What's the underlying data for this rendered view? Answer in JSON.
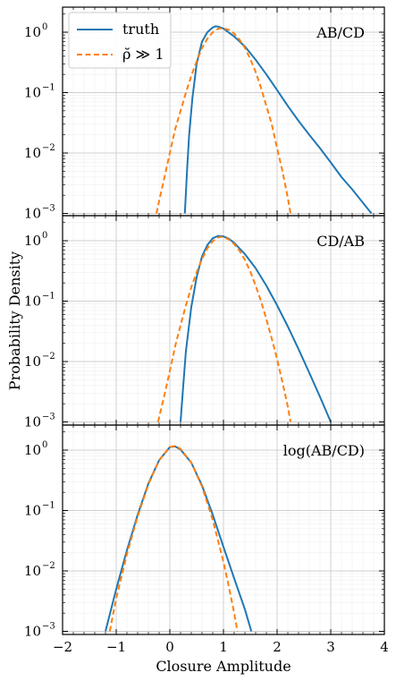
{
  "chart_data": {
    "type": "line",
    "xlabel": "Closure Amplitude",
    "ylabel": "Probability Density",
    "xlim": [
      -2,
      4
    ],
    "ylim": [
      0.001,
      3
    ],
    "y_scale": "log",
    "grid": true,
    "shared_x": true,
    "x_ticks": [
      "−2",
      "−1",
      "0",
      "1",
      "2",
      "3",
      "4"
    ],
    "y_ticks": [
      {
        "base": "10",
        "exp": "0"
      },
      {
        "base": "10",
        "exp": "−1"
      },
      {
        "base": "10",
        "exp": "−2"
      },
      {
        "base": "10",
        "exp": "−3"
      }
    ],
    "legend": {
      "placement": "top-left",
      "entries": [
        {
          "label": "truth",
          "color": "#1f77b4",
          "style": "solid"
        },
        {
          "label": "ρ̆ ≫ 1",
          "color": "#ff7f0e",
          "style": "dashed"
        }
      ]
    },
    "panels": [
      {
        "label": "AB/CD",
        "series": [
          {
            "name": "truth",
            "color": "#1f77b4",
            "style": "solid",
            "points": [
              [
                0.28,
                0.001
              ],
              [
                0.32,
                0.005
              ],
              [
                0.36,
                0.02
              ],
              [
                0.42,
                0.08
              ],
              [
                0.5,
                0.3
              ],
              [
                0.6,
                0.7
              ],
              [
                0.7,
                1.0
              ],
              [
                0.8,
                1.2
              ],
              [
                0.85,
                1.25
              ],
              [
                0.9,
                1.24
              ],
              [
                1.0,
                1.15
              ],
              [
                1.2,
                0.85
              ],
              [
                1.4,
                0.58
              ],
              [
                1.6,
                0.35
              ],
              [
                1.8,
                0.2
              ],
              [
                2.0,
                0.11
              ],
              [
                2.2,
                0.06
              ],
              [
                2.4,
                0.034
              ],
              [
                2.6,
                0.02
              ],
              [
                2.8,
                0.012
              ],
              [
                3.0,
                0.007
              ],
              [
                3.2,
                0.004
              ],
              [
                3.4,
                0.0025
              ],
              [
                3.6,
                0.0015
              ],
              [
                3.76,
                0.001
              ]
            ]
          },
          {
            "name": "ρ̆ ≫ 1",
            "color": "#ff7f0e",
            "style": "dashed",
            "points": [
              [
                -0.25,
                0.001
              ],
              [
                -0.2,
                0.0016
              ],
              [
                -0.1,
                0.004
              ],
              [
                0.0,
                0.01
              ],
              [
                0.1,
                0.025
              ],
              [
                0.2,
                0.05
              ],
              [
                0.3,
                0.1
              ],
              [
                0.4,
                0.19
              ],
              [
                0.5,
                0.33
              ],
              [
                0.6,
                0.55
              ],
              [
                0.7,
                0.78
              ],
              [
                0.8,
                1.0
              ],
              [
                0.9,
                1.14
              ],
              [
                0.97,
                1.17
              ],
              [
                1.1,
                1.1
              ],
              [
                1.2,
                0.95
              ],
              [
                1.3,
                0.75
              ],
              [
                1.4,
                0.55
              ],
              [
                1.5,
                0.36
              ],
              [
                1.6,
                0.22
              ],
              [
                1.7,
                0.12
              ],
              [
                1.8,
                0.06
              ],
              [
                1.9,
                0.03
              ],
              [
                2.0,
                0.012
              ],
              [
                2.1,
                0.005
              ],
              [
                2.2,
                0.0018
              ],
              [
                2.25,
                0.001
              ]
            ]
          }
        ]
      },
      {
        "label": "CD/AB",
        "series": [
          {
            "name": "truth",
            "color": "#1f77b4",
            "style": "solid",
            "points": [
              [
                0.2,
                0.001
              ],
              [
                0.25,
                0.004
              ],
              [
                0.3,
                0.015
              ],
              [
                0.4,
                0.08
              ],
              [
                0.5,
                0.25
              ],
              [
                0.6,
                0.55
              ],
              [
                0.7,
                0.85
              ],
              [
                0.8,
                1.1
              ],
              [
                0.9,
                1.2
              ],
              [
                1.0,
                1.18
              ],
              [
                1.1,
                1.08
              ],
              [
                1.2,
                0.92
              ],
              [
                1.4,
                0.6
              ],
              [
                1.6,
                0.35
              ],
              [
                1.8,
                0.18
              ],
              [
                2.0,
                0.085
              ],
              [
                2.2,
                0.038
              ],
              [
                2.4,
                0.016
              ],
              [
                2.6,
                0.0065
              ],
              [
                2.8,
                0.0026
              ],
              [
                3.0,
                0.001
              ]
            ]
          },
          {
            "name": "ρ̆ ≫ 1",
            "color": "#ff7f0e",
            "style": "dashed",
            "points": [
              [
                -0.22,
                0.001
              ],
              [
                -0.1,
                0.0028
              ],
              [
                0.0,
                0.007
              ],
              [
                0.1,
                0.018
              ],
              [
                0.2,
                0.04
              ],
              [
                0.3,
                0.085
              ],
              [
                0.4,
                0.17
              ],
              [
                0.5,
                0.3
              ],
              [
                0.6,
                0.5
              ],
              [
                0.7,
                0.75
              ],
              [
                0.8,
                0.98
              ],
              [
                0.9,
                1.13
              ],
              [
                0.95,
                1.16
              ],
              [
                1.0,
                1.15
              ],
              [
                1.1,
                1.05
              ],
              [
                1.2,
                0.88
              ],
              [
                1.3,
                0.68
              ],
              [
                1.4,
                0.48
              ],
              [
                1.5,
                0.31
              ],
              [
                1.6,
                0.18
              ],
              [
                1.7,
                0.1
              ],
              [
                1.8,
                0.05
              ],
              [
                1.9,
                0.024
              ],
              [
                2.0,
                0.011
              ],
              [
                2.1,
                0.0045
              ],
              [
                2.2,
                0.0018
              ],
              [
                2.25,
                0.001
              ]
            ]
          }
        ]
      },
      {
        "label": "log(AB/CD)",
        "series": [
          {
            "name": "truth",
            "color": "#1f77b4",
            "style": "solid",
            "points": [
              [
                -1.2,
                0.001
              ],
              [
                -1.0,
                0.005
              ],
              [
                -0.8,
                0.022
              ],
              [
                -0.6,
                0.085
              ],
              [
                -0.4,
                0.28
              ],
              [
                -0.2,
                0.68
              ],
              [
                0.0,
                1.12
              ],
              [
                0.1,
                1.15
              ],
              [
                0.2,
                1.02
              ],
              [
                0.4,
                0.62
              ],
              [
                0.6,
                0.26
              ],
              [
                0.8,
                0.085
              ],
              [
                1.0,
                0.025
              ],
              [
                1.2,
                0.0075
              ],
              [
                1.4,
                0.0023
              ],
              [
                1.52,
                0.001
              ]
            ]
          },
          {
            "name": "ρ̆ ≫ 1",
            "color": "#ff7f0e",
            "style": "dashed",
            "points": [
              [
                -1.12,
                0.001
              ],
              [
                -1.0,
                0.0035
              ],
              [
                -0.8,
                0.019
              ],
              [
                -0.6,
                0.08
              ],
              [
                -0.4,
                0.27
              ],
              [
                -0.2,
                0.68
              ],
              [
                0.0,
                1.12
              ],
              [
                0.1,
                1.17
              ],
              [
                0.2,
                1.05
              ],
              [
                0.4,
                0.62
              ],
              [
                0.6,
                0.25
              ],
              [
                0.8,
                0.07
              ],
              [
                1.0,
                0.014
              ],
              [
                1.1,
                0.0055
              ],
              [
                1.2,
                0.002
              ],
              [
                1.26,
                0.001
              ]
            ]
          }
        ]
      }
    ]
  }
}
